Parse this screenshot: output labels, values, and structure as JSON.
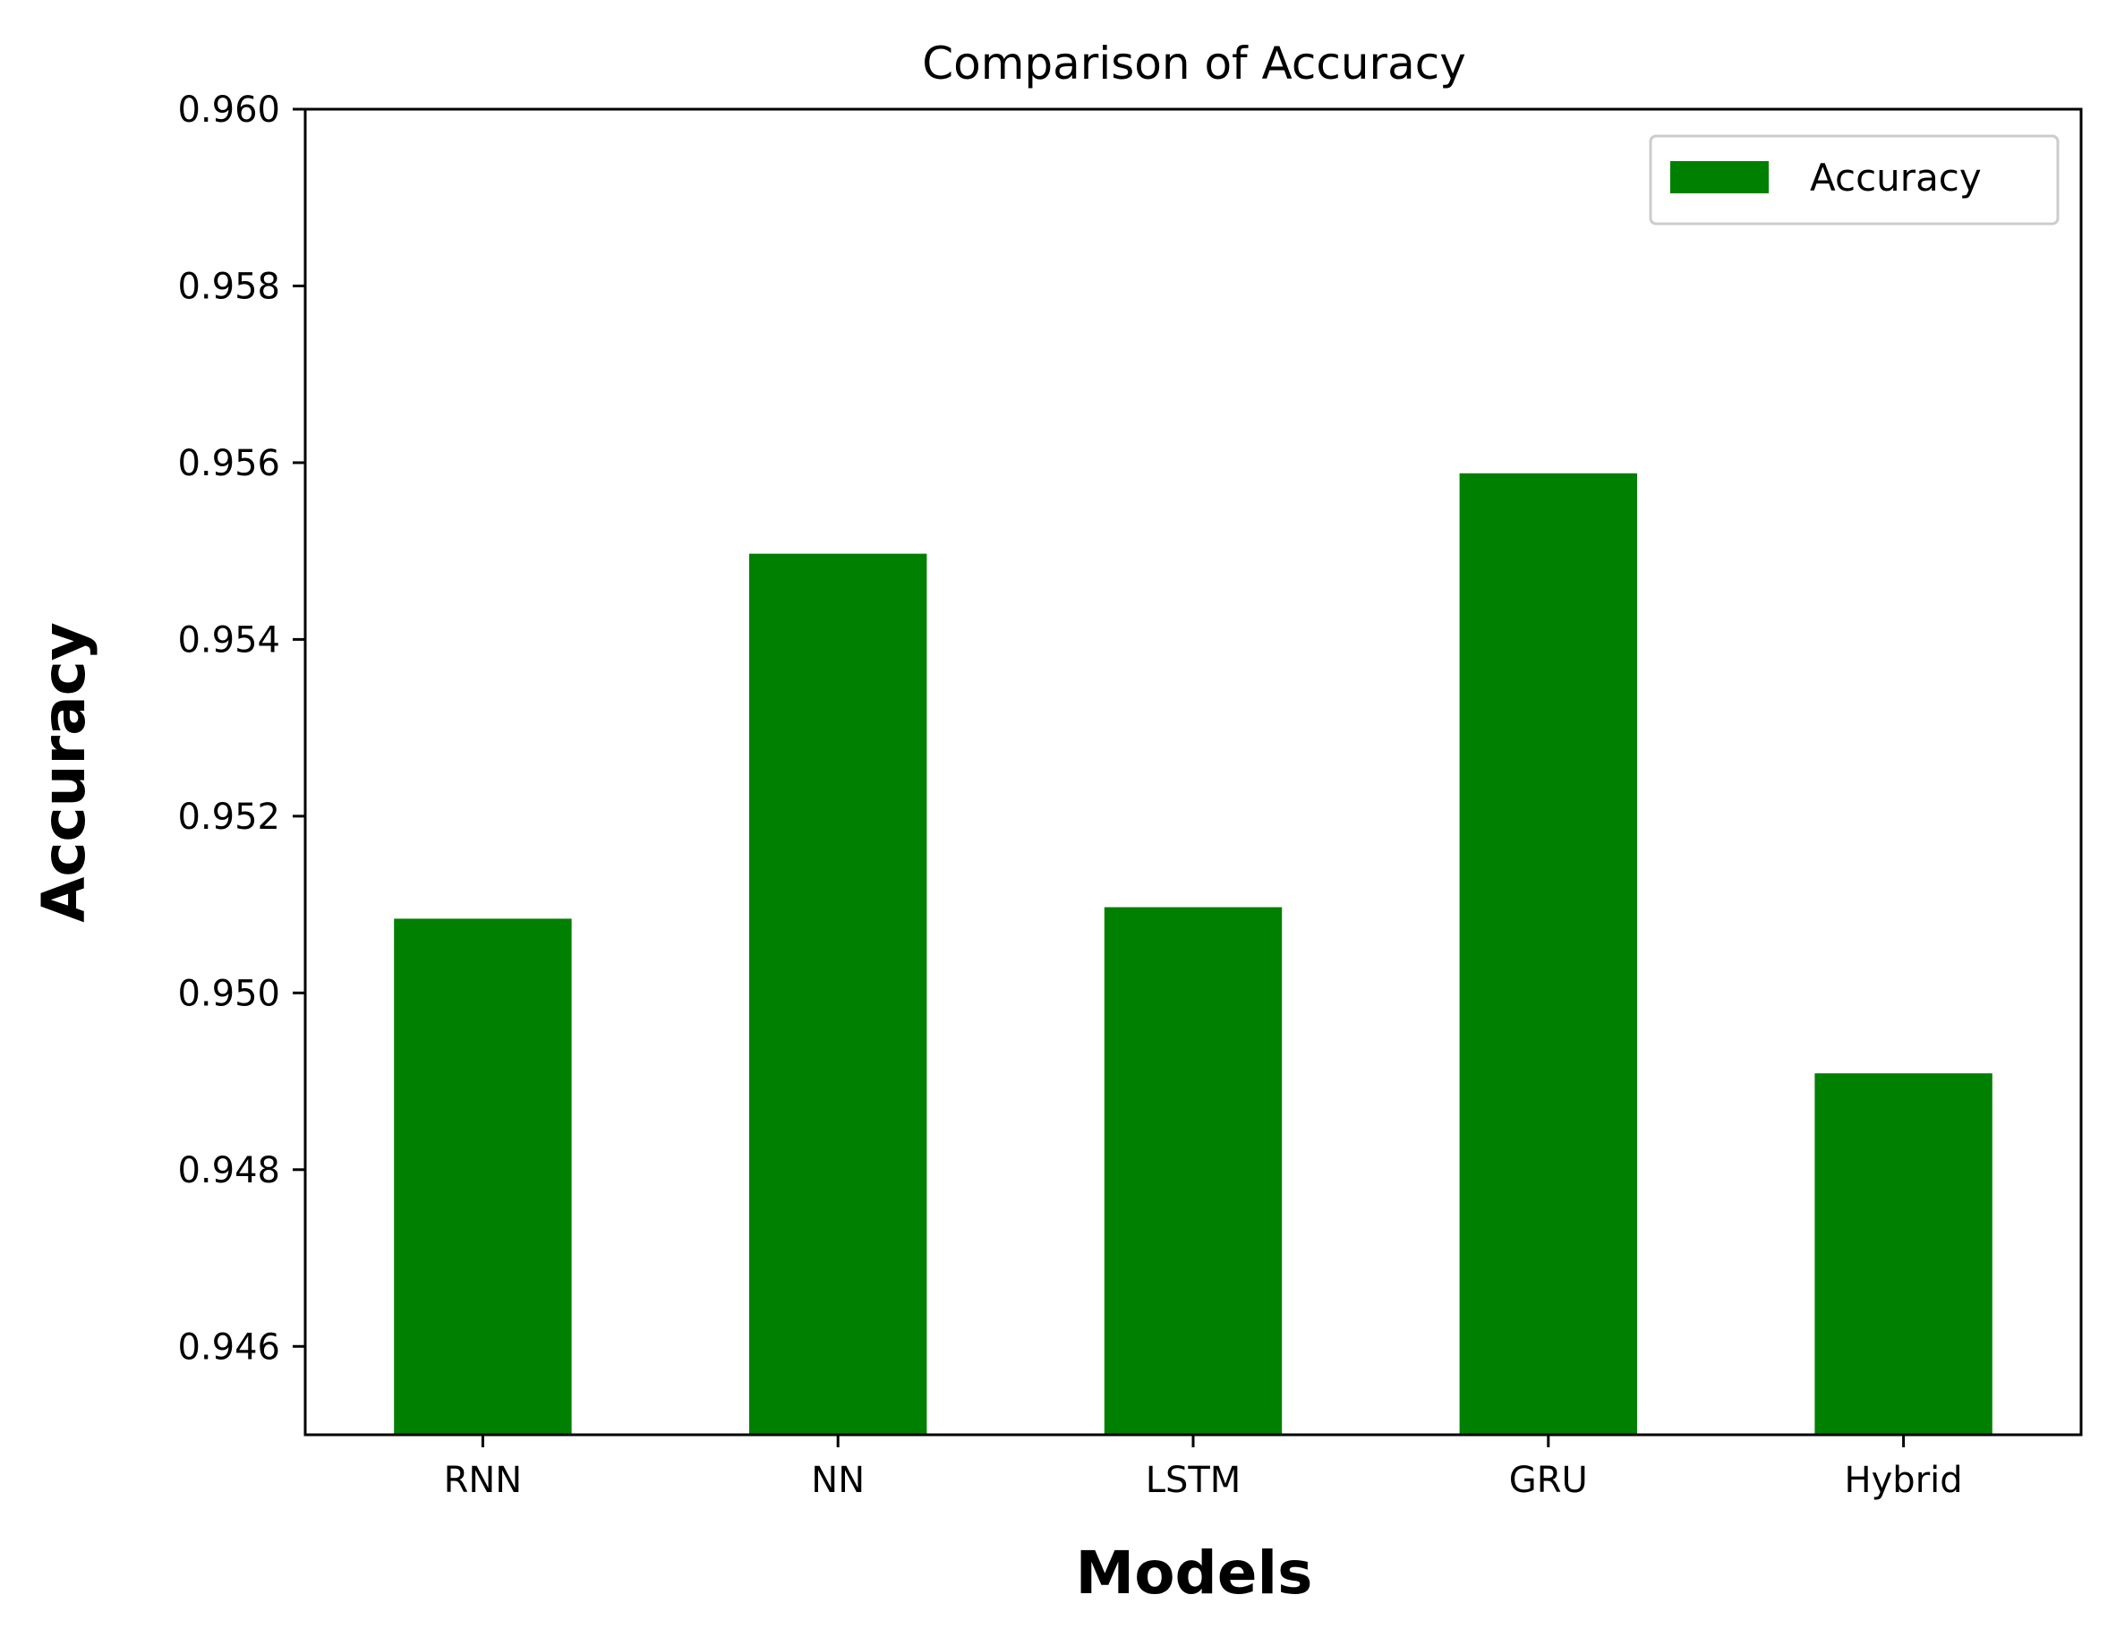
{
  "chart_data": {
    "type": "bar",
    "title": "Comparison of Accuracy",
    "xlabel": "Models",
    "ylabel": "Accuracy",
    "categories": [
      "RNN",
      "NN",
      "LSTM",
      "GRU",
      "Hybrid"
    ],
    "series": [
      {
        "name": "Accuracy",
        "values": [
          0.95084,
          0.95497,
          0.95097,
          0.95588,
          0.94909
        ]
      }
    ],
    "ylim": [
      0.945,
      0.96
    ],
    "yticks": [
      0.946,
      0.948,
      0.95,
      0.952,
      0.954,
      0.956,
      0.958,
      0.96
    ],
    "ytick_labels": [
      "0.946",
      "0.948",
      "0.950",
      "0.952",
      "0.954",
      "0.956",
      "0.958",
      "0.960"
    ],
    "grid": false,
    "legend_position": "top-right",
    "bar_color": "#008000"
  }
}
